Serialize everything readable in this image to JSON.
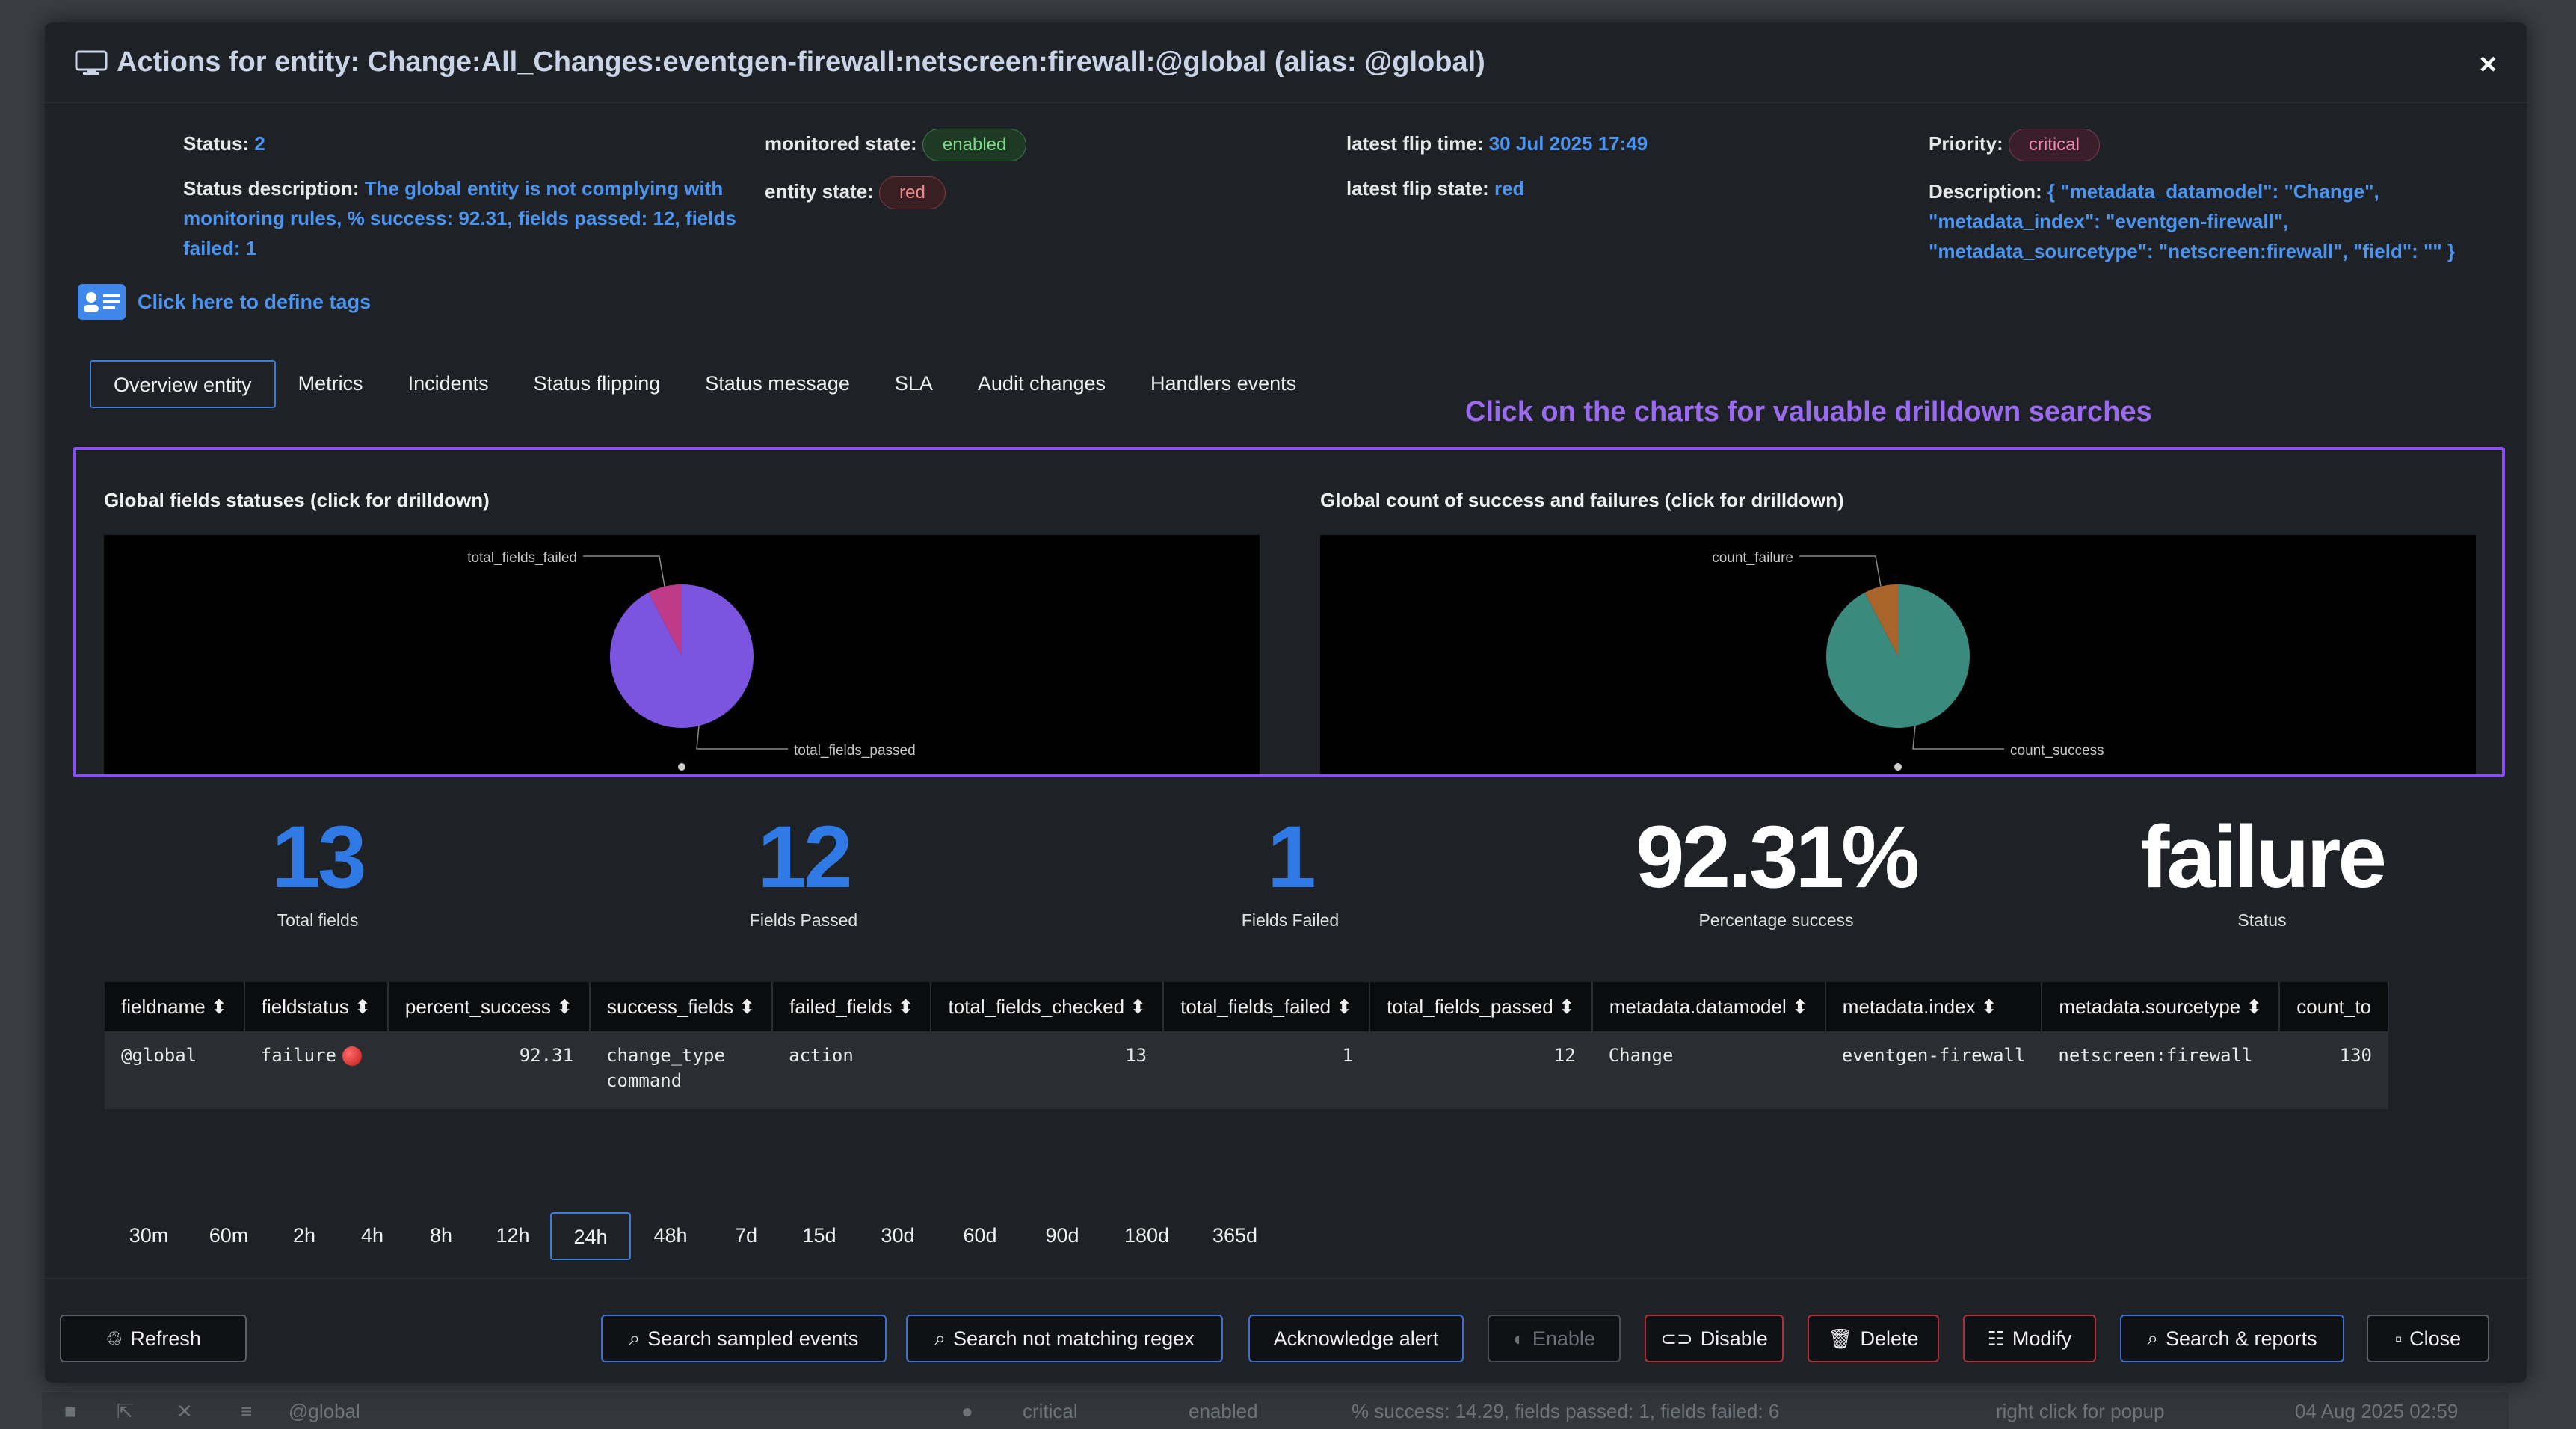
{
  "modal": {
    "title": "Actions for entity: Change:All_Changes:eventgen-firewall:netscreen:firewall:@global (alias: @global)",
    "close": "×"
  },
  "info": {
    "status_label": "Status:",
    "status_value": "2",
    "status_desc_label": "Status description:",
    "status_desc_value": "The global entity is not complying with monitoring rules, % success: 92.31, fields passed: 12, fields failed: 1",
    "monitored_state_label": "monitored state:",
    "monitored_state_value": "enabled",
    "entity_state_label": "entity state:",
    "entity_state_value": "red",
    "latest_flip_time_label": "latest flip time:",
    "latest_flip_time_value": "30 Jul 2025 17:49",
    "latest_flip_state_label": "latest flip state:",
    "latest_flip_state_value": "red",
    "priority_label": "Priority:",
    "priority_value": "critical",
    "description_label": "Description:",
    "description_value": "{ \"metadata_datamodel\": \"Change\", \"metadata_index\": \"eventgen-firewall\", \"metadata_sourcetype\": \"netscreen:firewall\", \"field\": \"\" }"
  },
  "tags_link": "Click here to define tags",
  "tabs": [
    "Overview entity",
    "Metrics",
    "Incidents",
    "Status flipping",
    "Status message",
    "SLA",
    "Audit changes",
    "Handlers events"
  ],
  "drill_hint": "Click on the charts for valuable drilldown searches",
  "chart_data": [
    {
      "type": "pie",
      "title": "Global fields statuses (click for drilldown)",
      "categories": [
        "total_fields_failed",
        "total_fields_passed"
      ],
      "values": [
        1,
        12
      ],
      "colors": [
        "#c03a8a",
        "#7b55e0"
      ]
    },
    {
      "type": "pie",
      "title": "Global count of success and failures (click for drilldown)",
      "categories": [
        "count_failure",
        "count_success"
      ],
      "values": [
        1,
        12
      ],
      "colors": [
        "#a8642a",
        "#3a8a7e"
      ]
    }
  ],
  "kpis": [
    {
      "value": "13",
      "label": "Total fields"
    },
    {
      "value": "12",
      "label": "Fields Passed"
    },
    {
      "value": "1",
      "label": "Fields Failed"
    },
    {
      "value": "92.31%",
      "label": "Percentage success"
    },
    {
      "value": "failure",
      "label": "Status"
    }
  ],
  "table": {
    "headers": [
      "fieldname",
      "fieldstatus",
      "percent_success",
      "success_fields",
      "failed_fields",
      "total_fields_checked",
      "total_fields_failed",
      "total_fields_passed",
      "metadata.datamodel",
      "metadata.index",
      "metadata.sourcetype",
      "count_to"
    ],
    "sort_glyph": "⬍",
    "row": {
      "fieldname": "@global",
      "fieldstatus": "failure",
      "percent_success": "92.31",
      "success_fields_1": "change_type",
      "success_fields_2": "command",
      "failed_fields": "action",
      "total_fields_checked": "13",
      "total_fields_failed": "1",
      "total_fields_passed": "12",
      "metadata_datamodel": "Change",
      "metadata_index": "eventgen-firewall",
      "metadata_sourcetype": "netscreen:firewall",
      "count_to": "130"
    }
  },
  "time_ranges": [
    "30m",
    "60m",
    "2h",
    "4h",
    "8h",
    "12h",
    "24h",
    "48h",
    "7d",
    "15d",
    "30d",
    "60d",
    "90d",
    "180d",
    "365d"
  ],
  "time_range_selected": "24h",
  "buttons": {
    "refresh": "Refresh",
    "search_sampled": "Search sampled events",
    "search_not_matching": "Search not matching regex",
    "ack": "Acknowledge alert",
    "enable": "Enable",
    "disable": "Disable",
    "delete": "Delete",
    "modify": "Modify",
    "search_reports": "Search & reports",
    "close": "Close"
  },
  "background_row": {
    "name": "@global",
    "priority": "critical",
    "state": "enabled",
    "desc": "% success: 14.29, fields passed: 1, fields failed: 6",
    "hint": "right click for popup",
    "time": "04 Aug 2025 02:59"
  }
}
